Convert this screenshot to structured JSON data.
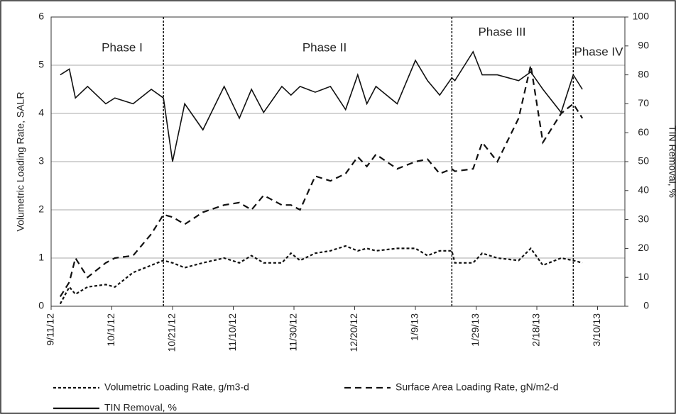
{
  "chart_data": {
    "type": "line",
    "y_label": "Volumetric Loading Rate, SALR",
    "y2_label": "TIN Removal, %",
    "x": [
      "2012-09-14",
      "2012-09-17",
      "2012-09-19",
      "2012-09-23",
      "2012-09-29",
      "2012-10-02",
      "2012-10-08",
      "2012-10-14",
      "2012-10-18",
      "2012-10-21",
      "2012-10-25",
      "2012-10-31",
      "2012-11-07",
      "2012-11-12",
      "2012-11-16",
      "2012-11-20",
      "2012-11-26",
      "2012-11-29",
      "2012-12-02",
      "2012-12-07",
      "2012-12-12",
      "2012-12-17",
      "2012-12-21",
      "2012-12-24",
      "2012-12-27",
      "2013-01-03",
      "2013-01-09",
      "2013-01-13",
      "2013-01-17",
      "2013-01-21",
      "2013-01-22",
      "2013-01-28",
      "2013-01-31",
      "2013-02-05",
      "2013-02-12",
      "2013-02-16",
      "2013-02-20",
      "2013-02-26",
      "2013-03-02",
      "2013-03-05"
    ],
    "xlim": [
      "2012-09-11",
      "2013-03-19"
    ],
    "xticks": [
      {
        "value": "2012-09-11",
        "label": "9/11/12"
      },
      {
        "value": "2012-10-01",
        "label": "10/1/12"
      },
      {
        "value": "2012-10-21",
        "label": "10/21/12"
      },
      {
        "value": "2012-11-10",
        "label": "11/10/12"
      },
      {
        "value": "2012-11-30",
        "label": "11/30/12"
      },
      {
        "value": "2012-12-20",
        "label": "12/20/12"
      },
      {
        "value": "2013-01-09",
        "label": "1/9/13"
      },
      {
        "value": "2013-01-29",
        "label": "1/29/13"
      },
      {
        "value": "2013-02-18",
        "label": "2/18/13"
      },
      {
        "value": "2013-03-10",
        "label": "3/10/13"
      }
    ],
    "ylim": [
      0,
      6
    ],
    "yticks": [
      0,
      1,
      2,
      3,
      4,
      5,
      6
    ],
    "y2lim": [
      0,
      100
    ],
    "y2ticks": [
      0,
      10,
      20,
      30,
      40,
      50,
      60,
      70,
      80,
      90,
      100
    ],
    "grid": true,
    "phases": [
      "Phase I",
      "Phase II",
      "Phase III",
      "Phase  IV"
    ],
    "phase_boundaries": [
      "2012-10-18",
      "2013-01-21",
      "2013-03-02"
    ],
    "series": [
      {
        "name": "Volumetric Loading Rate, g/m3-d",
        "color": "#111111",
        "style": "dotted",
        "values": [
          0.05,
          0.4,
          0.25,
          0.4,
          0.45,
          0.4,
          0.7,
          0.85,
          0.95,
          0.9,
          0.8,
          0.9,
          1.0,
          0.9,
          1.05,
          0.9,
          0.9,
          1.1,
          0.95,
          1.1,
          1.15,
          1.25,
          1.15,
          1.2,
          1.15,
          1.2,
          1.2,
          1.05,
          1.15,
          1.15,
          0.9,
          0.9,
          1.1,
          1.0,
          0.95,
          1.2,
          0.85,
          1.0,
          0.95,
          0.9
        ]
      },
      {
        "name": "Surface Area Loading Rate, gN/m2-d",
        "color": "#111111",
        "style": "dashed",
        "values": [
          0.2,
          0.5,
          1.0,
          0.6,
          0.9,
          1.0,
          1.05,
          1.5,
          1.9,
          1.85,
          1.7,
          1.95,
          2.1,
          2.15,
          2.0,
          2.3,
          2.1,
          2.1,
          2.0,
          2.7,
          2.6,
          2.75,
          3.1,
          2.9,
          3.15,
          2.85,
          3.0,
          3.05,
          2.75,
          2.85,
          2.8,
          2.85,
          3.4,
          3.0,
          3.9,
          5.0,
          3.4,
          4.0,
          4.2,
          3.9
        ]
      },
      {
        "name": "TIN Removal, %",
        "color": "#111111",
        "style": "solid",
        "axis": "y2",
        "values": [
          80,
          82,
          72,
          76,
          70,
          72,
          70,
          75,
          72,
          50,
          70,
          61,
          76,
          65,
          75,
          67,
          76,
          73,
          76,
          74,
          76,
          68,
          80,
          70,
          76,
          70,
          85,
          78,
          73,
          79,
          78,
          88,
          80,
          80,
          78,
          81,
          75,
          67,
          80,
          75
        ]
      }
    ]
  }
}
